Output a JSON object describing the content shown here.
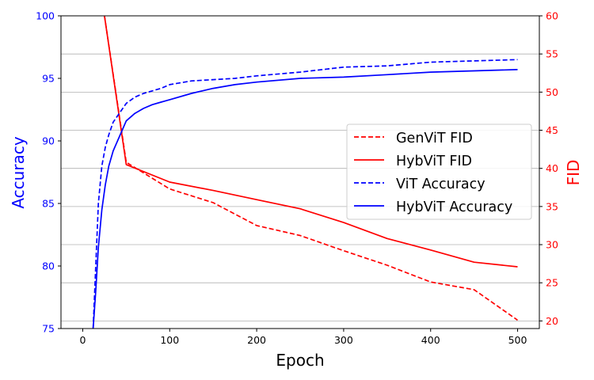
{
  "chart_data": {
    "type": "line",
    "xlabel": "Epoch",
    "ylabel_left": "Accuracy",
    "ylabel_right": "FID",
    "xlim": [
      -25,
      525
    ],
    "ylim_left": [
      75,
      100
    ],
    "ylim_right": [
      19,
      60
    ],
    "x_ticks": [
      "0",
      "100",
      "200",
      "300",
      "400",
      "500"
    ],
    "y_ticks_left": [
      "75",
      "80",
      "85",
      "90",
      "95",
      "100"
    ],
    "y_ticks_right": [
      "20",
      "25",
      "30",
      "35",
      "40",
      "45",
      "50",
      "55",
      "60"
    ],
    "grid": "horizontal lines at right-axis ticks",
    "legend_placement": "center-right",
    "colors": {
      "left_axis": "#0000ff",
      "right_axis": "#ff0000"
    },
    "series": [
      {
        "name": "GenViT FID",
        "axis": "right",
        "color": "#ff0000",
        "style": "dashed",
        "x": [
          25,
          50,
          100,
          150,
          200,
          250,
          300,
          350,
          400,
          450,
          500
        ],
        "y": [
          60,
          40.8,
          37.3,
          35.5,
          32.5,
          31.2,
          29.2,
          27.3,
          25.1,
          24.1,
          20.1
        ]
      },
      {
        "name": "HybViT FID",
        "axis": "right",
        "color": "#ff0000",
        "style": "solid",
        "x": [
          25,
          50,
          100,
          150,
          200,
          250,
          300,
          350,
          400,
          450,
          500
        ],
        "y": [
          60,
          40.5,
          38.2,
          37.1,
          35.9,
          34.7,
          32.9,
          30.8,
          29.3,
          27.7,
          27.1
        ]
      },
      {
        "name": "ViT Accuracy",
        "axis": "left",
        "color": "#0000ff",
        "style": "dashed",
        "x": [
          12,
          15,
          18,
          22,
          26,
          30,
          35,
          40,
          45,
          50,
          60,
          70,
          80,
          90,
          100,
          125,
          150,
          175,
          200,
          250,
          300,
          350,
          400,
          450,
          500
        ],
        "y": [
          75,
          80,
          85,
          88,
          89.5,
          90.5,
          91.5,
          92,
          92.5,
          93,
          93.5,
          93.8,
          94,
          94.2,
          94.5,
          94.8,
          94.9,
          95,
          95.2,
          95.5,
          95.9,
          96,
          96.3,
          96.4,
          96.5
        ]
      },
      {
        "name": "HybViT Accuracy",
        "axis": "left",
        "color": "#0000ff",
        "style": "solid",
        "x": [
          12,
          15,
          18,
          22,
          26,
          30,
          35,
          40,
          45,
          50,
          60,
          70,
          80,
          90,
          100,
          125,
          150,
          175,
          200,
          250,
          300,
          350,
          400,
          450,
          500
        ],
        "y": [
          75,
          78,
          81.5,
          84.5,
          86.5,
          88,
          89.2,
          90,
          90.8,
          91.6,
          92.2,
          92.6,
          92.9,
          93.1,
          93.3,
          93.8,
          94.2,
          94.5,
          94.7,
          95,
          95.1,
          95.3,
          95.5,
          95.6,
          95.7
        ]
      }
    ]
  }
}
